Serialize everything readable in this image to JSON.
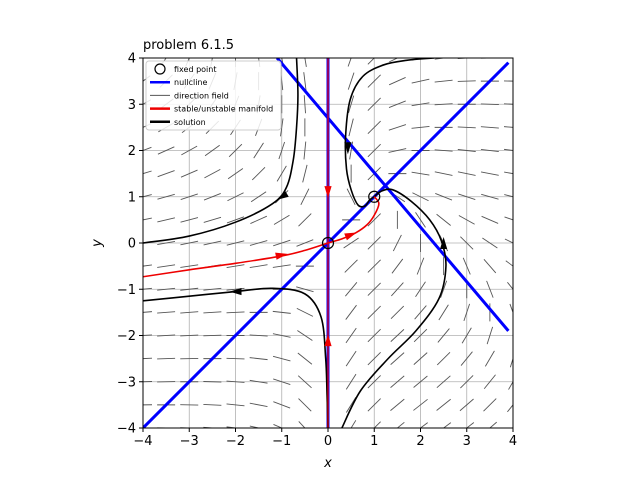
{
  "chart_data": {
    "type": "line",
    "title": "problem 6.1.5",
    "xlabel": "x",
    "ylabel": "y",
    "xlim": [
      -4,
      4
    ],
    "ylim": [
      -4,
      4
    ],
    "xticks": [
      "−4",
      "−3",
      "−2",
      "−1",
      "0",
      "1",
      "2",
      "3",
      "4"
    ],
    "yticks": [
      "−4",
      "−3",
      "−2",
      "−1",
      "0",
      "1",
      "2",
      "3",
      "4"
    ],
    "grid": true,
    "legend_position": "top-left",
    "legend": [
      {
        "label": "fixed point",
        "kind": "circle",
        "color": "#000000"
      },
      {
        "label": "nullcline",
        "kind": "line",
        "color": "#0000ff"
      },
      {
        "label": "direction field",
        "kind": "thin-line",
        "color": "#555555"
      },
      {
        "label": "stable/unstable manifold",
        "kind": "line",
        "color": "#ee0000"
      },
      {
        "label": "solution",
        "kind": "line",
        "color": "#000000"
      }
    ],
    "fixed_points": [
      [
        0,
        0
      ],
      [
        1,
        1
      ]
    ],
    "nullclines": [
      {
        "name": "y = x",
        "points": [
          [
            -4,
            -4
          ],
          [
            3.9,
            3.9
          ]
        ]
      },
      {
        "name": "y = 2 - x",
        "points": [
          [
            -1.1,
            4.0
          ],
          [
            3.9,
            -1.9
          ]
        ]
      },
      {
        "name": "x = 0",
        "points": [
          [
            0,
            -4
          ],
          [
            0,
            4
          ]
        ]
      }
    ],
    "manifolds": [
      {
        "name": "stable",
        "points": [
          [
            0,
            4
          ],
          [
            0,
            -4
          ]
        ]
      },
      {
        "name": "unstable",
        "points": [
          [
            -4,
            -0.73
          ],
          [
            -3,
            -0.58
          ],
          [
            -2,
            -0.44
          ],
          [
            -1,
            -0.28
          ],
          [
            -0.5,
            -0.16
          ],
          [
            0,
            0
          ],
          [
            0.3,
            0.09
          ],
          [
            0.6,
            0.22
          ],
          [
            0.85,
            0.4
          ],
          [
            1.0,
            0.6
          ],
          [
            1.1,
            0.85
          ],
          [
            1.0,
            1.0
          ]
        ]
      }
    ],
    "solutions": [
      {
        "name": "solution",
        "points": [
          [
            -4,
            0
          ],
          [
            -3,
            0.15
          ],
          [
            -2,
            0.45
          ],
          [
            -1.2,
            0.85
          ],
          [
            -0.9,
            1.2
          ],
          [
            -0.75,
            1.8
          ],
          [
            -0.68,
            2.5
          ],
          [
            -0.65,
            3.2
          ],
          [
            -0.68,
            4.0
          ]
        ]
      },
      {
        "name": "solution",
        "points": [
          [
            -4,
            -1.25
          ],
          [
            -3,
            -1.15
          ],
          [
            -2,
            -1.05
          ],
          [
            -1.2,
            -0.98
          ],
          [
            -0.5,
            -1.1
          ],
          [
            -0.15,
            -1.6
          ],
          [
            -0.05,
            -2.5
          ],
          [
            -0.02,
            -3.3
          ],
          [
            0,
            -4
          ]
        ]
      },
      {
        "name": "solution",
        "points": [
          [
            0.3,
            -4
          ],
          [
            0.7,
            -3.2
          ],
          [
            1.3,
            -2.5
          ],
          [
            1.9,
            -1.9
          ],
          [
            2.4,
            -1.2
          ],
          [
            2.55,
            -0.5
          ],
          [
            2.45,
            0.05
          ],
          [
            2.2,
            0.5
          ],
          [
            1.8,
            0.9
          ],
          [
            1.4,
            1.15
          ],
          [
            1.15,
            1.12
          ],
          [
            1.0,
            1.0
          ]
        ]
      },
      {
        "name": "solution",
        "points": [
          [
            2.3,
            4
          ],
          [
            1.7,
            3.95
          ],
          [
            1.2,
            3.85
          ],
          [
            0.75,
            3.6
          ],
          [
            0.48,
            3.1
          ],
          [
            0.38,
            2.3
          ],
          [
            0.4,
            1.6
          ],
          [
            0.5,
            1.15
          ],
          [
            0.65,
            0.82
          ],
          [
            0.8,
            0.8
          ],
          [
            0.9,
            0.93
          ],
          [
            1.0,
            1.0
          ]
        ]
      }
    ],
    "direction_arrows": [
      {
        "series": "stable",
        "at": [
          0,
          1.1
        ],
        "dir": [
          0,
          -1
        ],
        "color": "#ee0000"
      },
      {
        "series": "stable",
        "at": [
          0,
          -2.1
        ],
        "dir": [
          0,
          1
        ],
        "color": "#ee0000"
      },
      {
        "series": "unstable",
        "at": [
          -1,
          -0.26
        ],
        "dir": [
          1,
          0.2
        ],
        "color": "#ee0000"
      },
      {
        "series": "unstable",
        "at": [
          0.5,
          0.18
        ],
        "dir": [
          1,
          0.4
        ],
        "color": "#ee0000"
      },
      {
        "series": "solution",
        "at": [
          -1.0,
          1.0
        ],
        "dir": [
          -1,
          -0.6
        ],
        "color": "#000000"
      },
      {
        "series": "solution",
        "at": [
          -2.0,
          -1.05
        ],
        "dir": [
          -1,
          0
        ],
        "color": "#000000"
      },
      {
        "series": "solution",
        "at": [
          2.5,
          0.0
        ],
        "dir": [
          0,
          1
        ],
        "color": "#000000"
      },
      {
        "series": "solution",
        "at": [
          0.43,
          2.05
        ],
        "dir": [
          0,
          -1
        ],
        "color": "#000000"
      }
    ],
    "colors": {
      "nullcline": "#0000ff",
      "manifold": "#ee0000",
      "solution": "#000000",
      "field": "#555555",
      "grid": "#b0b0b0",
      "stable_overlay": "#9900cc"
    }
  }
}
